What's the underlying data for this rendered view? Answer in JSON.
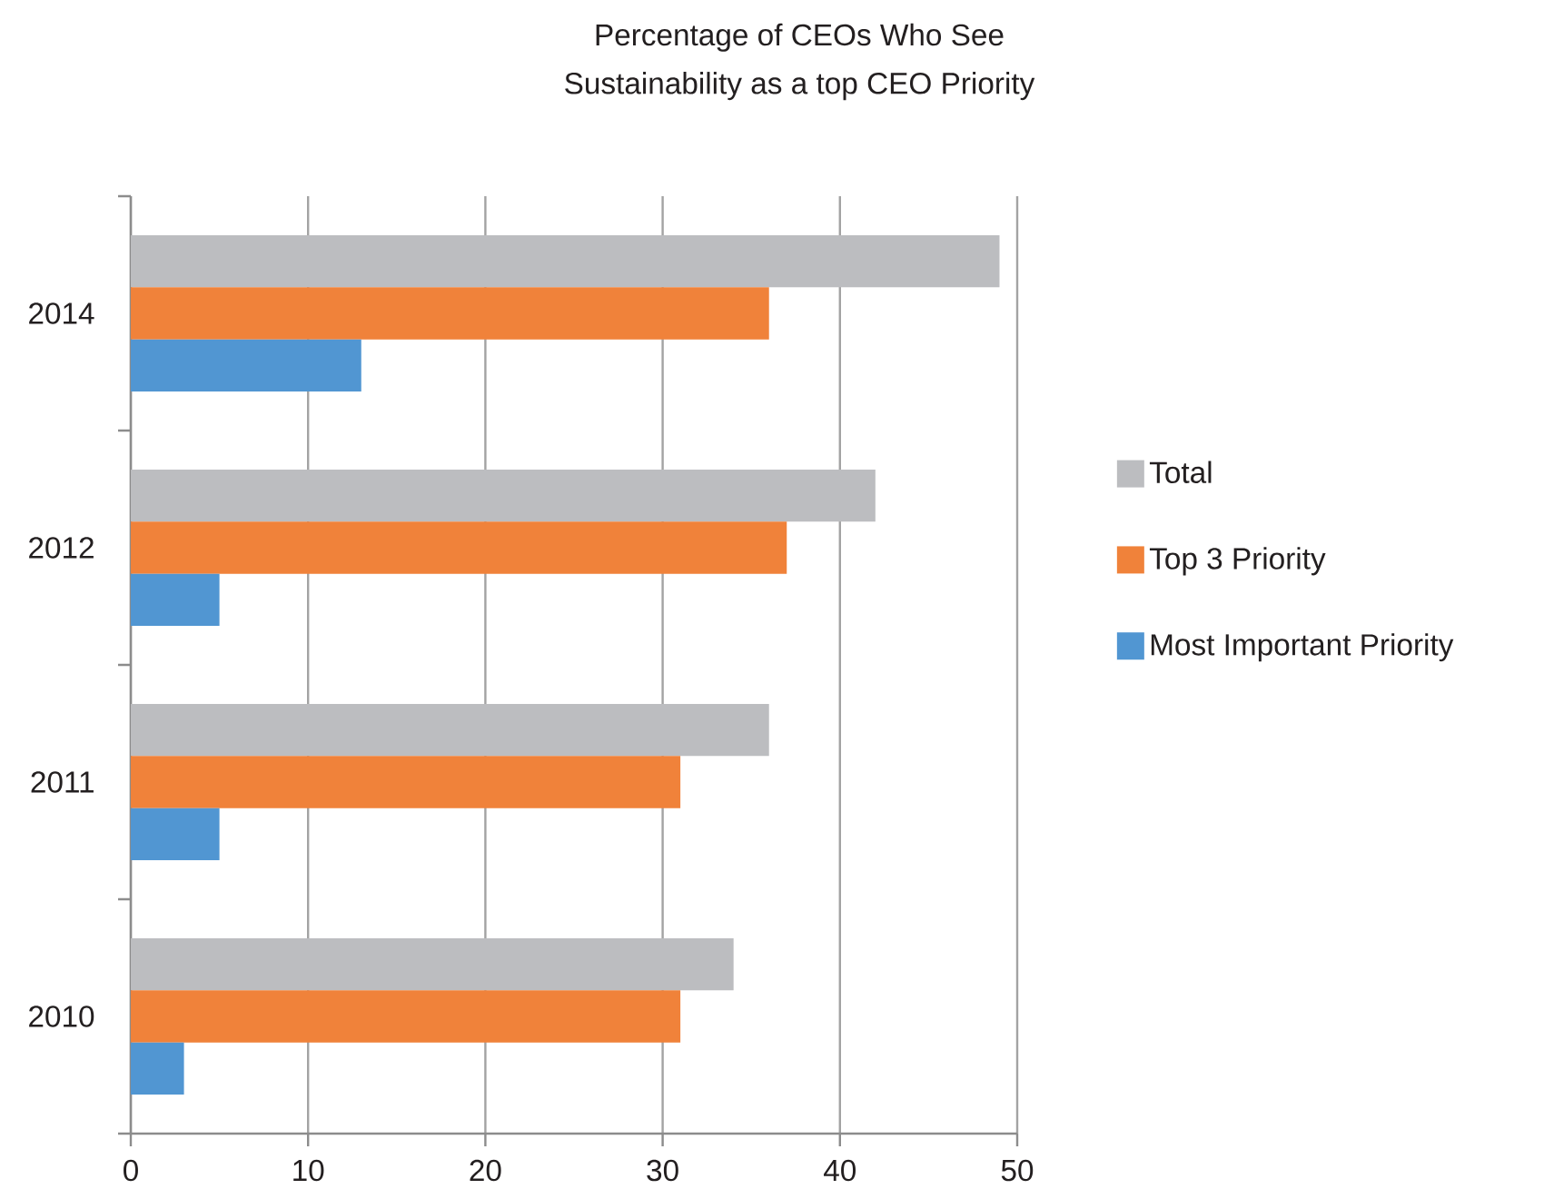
{
  "chart_data": {
    "type": "bar",
    "orientation": "horizontal",
    "title": "Percentage of CEOs Who See Sustainability as a top CEO Priority",
    "categories": [
      "2014",
      "2012",
      "2011",
      "2010"
    ],
    "series": [
      {
        "name": "Total",
        "color": "#bcbdc0",
        "values": [
          49,
          42,
          36,
          34
        ]
      },
      {
        "name": "Top 3 Priority",
        "color": "#f0823a",
        "values": [
          36,
          37,
          31,
          31
        ]
      },
      {
        "name": "Most Important Priority",
        "color": "#5196d2",
        "values": [
          13,
          5,
          5,
          3
        ]
      }
    ],
    "xlim": [
      0,
      50
    ],
    "xticks": [
      0,
      10,
      20,
      30,
      40,
      50
    ],
    "grid": "x",
    "legend": "right"
  }
}
